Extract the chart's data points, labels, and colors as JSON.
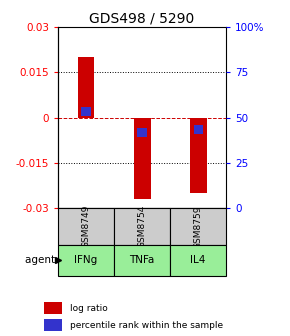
{
  "title": "GDS498 / 5290",
  "samples": [
    "GSM8749",
    "GSM8754",
    "GSM8759"
  ],
  "agents": [
    "IFNg",
    "TNFa",
    "IL4"
  ],
  "log_ratios": [
    0.02,
    -0.027,
    -0.025
  ],
  "percentile_values": [
    0.002,
    -0.005,
    -0.004
  ],
  "ylim": [
    -0.03,
    0.03
  ],
  "yticks_left": [
    -0.03,
    -0.015,
    0,
    0.015,
    0.03
  ],
  "ytick_left_labels": [
    "-0.03",
    "-0.015",
    "0",
    "0.015",
    "0.03"
  ],
  "yticks_right_pos": [
    -0.03,
    -0.015,
    0,
    0.015,
    0.03
  ],
  "ytick_right_labels": [
    "0",
    "25",
    "50",
    "75",
    "100%"
  ],
  "bar_color": "#cc0000",
  "blue_color": "#3333cc",
  "sample_bg": "#cccccc",
  "agent_bg": "#99ee99",
  "title_fontsize": 10,
  "tick_fontsize": 7.5,
  "bar_width": 0.3
}
